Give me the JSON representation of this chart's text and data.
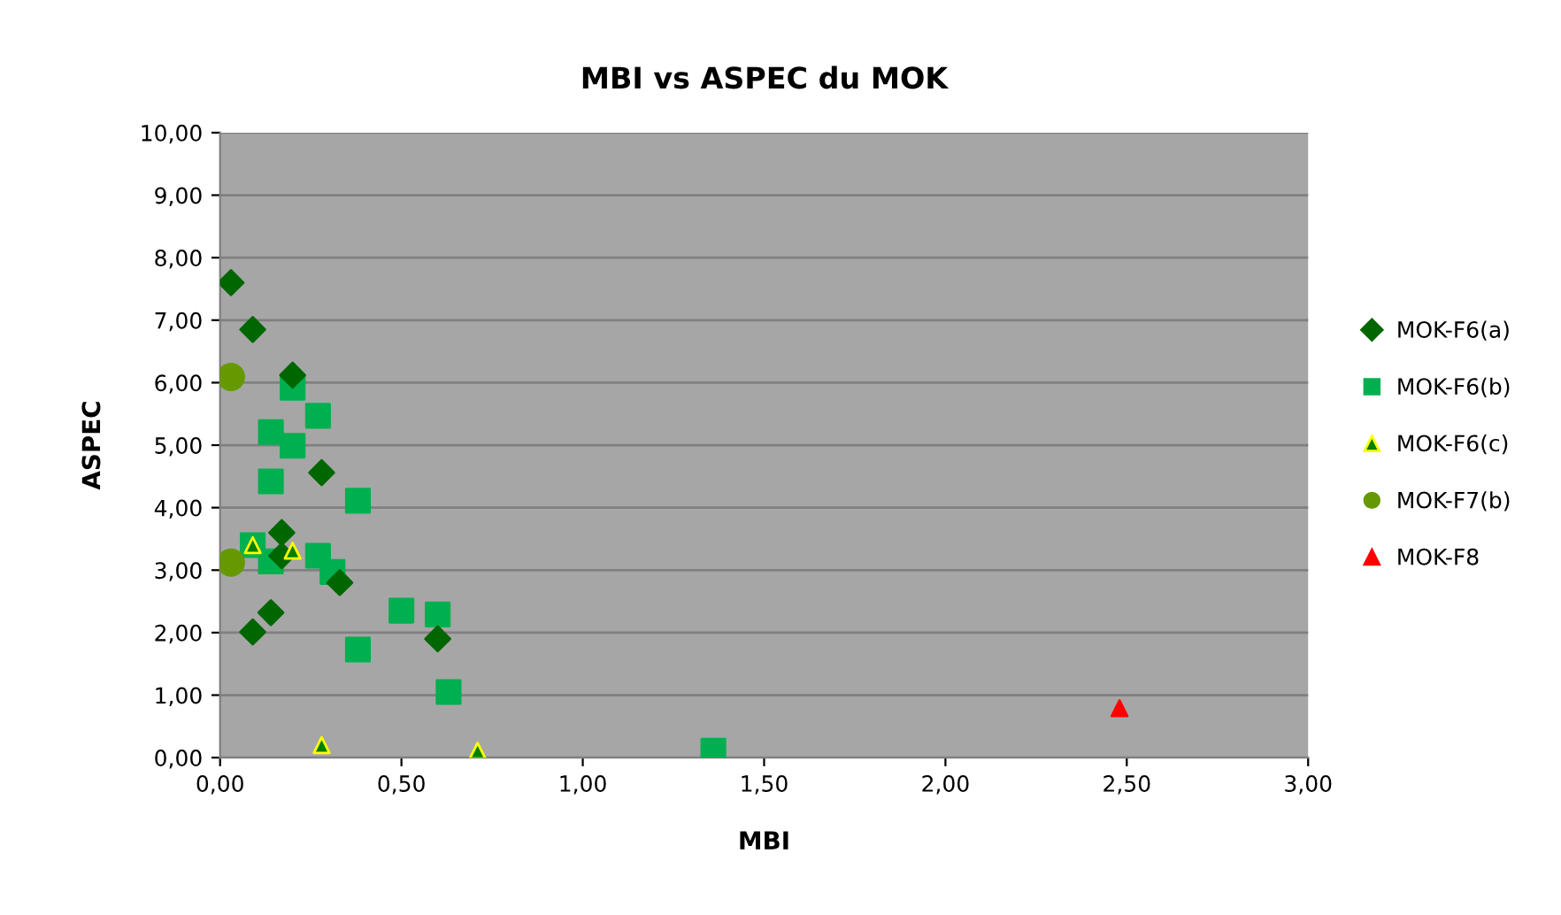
{
  "chart_data": {
    "type": "scatter",
    "title": "MBI vs ASPEC du MOK",
    "xlabel": "MBI",
    "ylabel": "ASPEC",
    "xlim": [
      0,
      3
    ],
    "xticks": [
      {
        "value": 0,
        "label": "0,00"
      },
      {
        "value": 0.5,
        "label": "0,50"
      },
      {
        "value": 1,
        "label": "1,00"
      },
      {
        "value": 1.5,
        "label": "1,50"
      },
      {
        "value": 2,
        "label": "2,00"
      },
      {
        "value": 2.5,
        "label": "2,50"
      },
      {
        "value": 3,
        "label": "3,00"
      }
    ],
    "ylim": [
      0,
      10
    ],
    "yticks": [
      {
        "value": 0,
        "label": "0,00"
      },
      {
        "value": 1,
        "label": "1,00"
      },
      {
        "value": 2,
        "label": "2,00"
      },
      {
        "value": 3,
        "label": "3,00"
      },
      {
        "value": 4,
        "label": "4,00"
      },
      {
        "value": 5,
        "label": "5,00"
      },
      {
        "value": 6,
        "label": "6,00"
      },
      {
        "value": 7,
        "label": "7,00"
      },
      {
        "value": 8,
        "label": "8,00"
      },
      {
        "value": 9,
        "label": "9,00"
      },
      {
        "value": 10,
        "label": "10,00"
      }
    ],
    "grid": "y",
    "legend": "right",
    "series": [
      {
        "name": "MOK-F6(a)",
        "color": "#006600",
        "marker": "diamond",
        "x": [
          0.03,
          0.09,
          0.2,
          0.28,
          0.17,
          0.17,
          0.33,
          0.14,
          0.09,
          0.6
        ],
        "values": [
          7.6,
          6.85,
          6.12,
          4.56,
          3.6,
          3.23,
          2.8,
          2.32,
          2.01,
          1.9
        ]
      },
      {
        "name": "MOK-F6(b)",
        "color": "#00b050",
        "marker": "square",
        "x": [
          0.2,
          0.27,
          0.14,
          0.2,
          0.14,
          0.38,
          0.09,
          0.14,
          0.27,
          0.31,
          0.5,
          0.6,
          0.38,
          0.63,
          1.36
        ],
        "values": [
          5.92,
          5.47,
          5.21,
          4.99,
          4.42,
          4.11,
          3.4,
          3.14,
          3.23,
          2.97,
          2.35,
          2.29,
          1.73,
          1.05,
          0.11
        ]
      },
      {
        "name": "MOK-F6(c)",
        "color": "#008000",
        "marker": "triangle",
        "x": [
          0.09,
          0.2,
          0.28,
          0.71
        ],
        "values": [
          3.4,
          3.31,
          0.2,
          0.11
        ]
      },
      {
        "name": "MOK-F7(b)",
        "color": "#669900",
        "marker": "circle",
        "x": [
          0.03,
          0.03
        ],
        "values": [
          6.09,
          3.12
        ]
      },
      {
        "name": "MOK-F8",
        "color": "#ff0000",
        "marker": "triangle",
        "x": [
          2.48
        ],
        "values": [
          0.79
        ]
      }
    ]
  }
}
